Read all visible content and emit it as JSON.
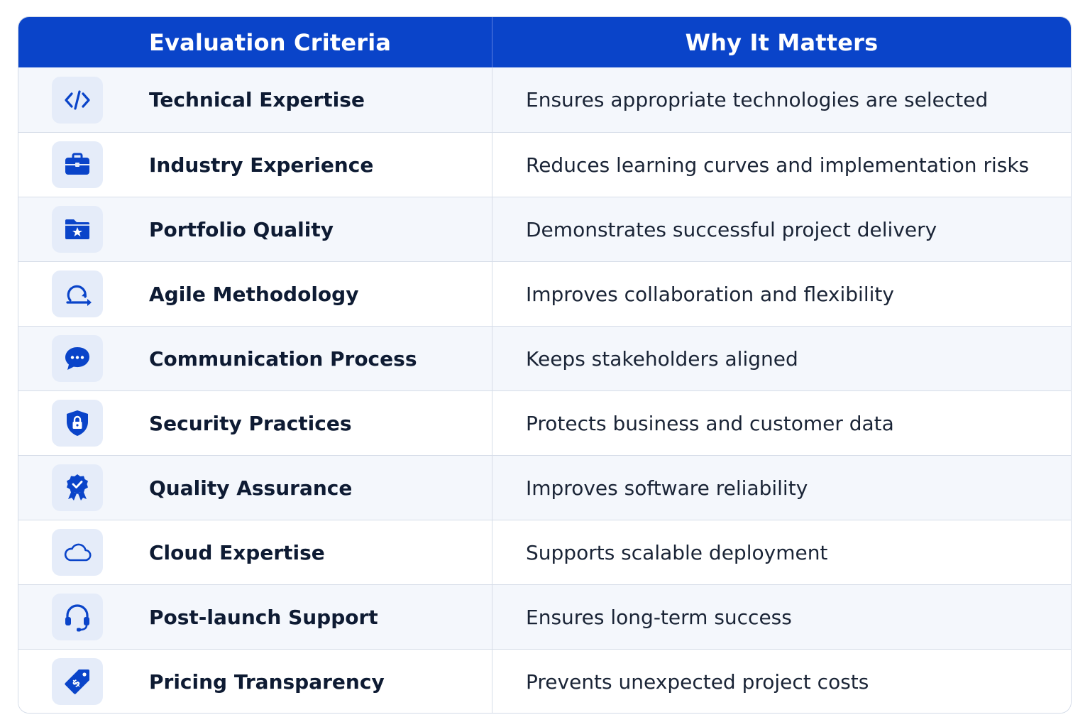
{
  "header": {
    "col1": "Evaluation Criteria",
    "col2": "Why It Matters"
  },
  "colors": {
    "header_bg": "#0a44c9",
    "icon_color": "#0a44c9",
    "icon_bg": "#e5ecf9"
  },
  "rows": [
    {
      "criteria": "Technical Expertise",
      "why": "Ensures appropriate technologies are selected",
      "icon": "code-icon"
    },
    {
      "criteria": "Industry Experience",
      "why": "Reduces learning curves and implementation risks",
      "icon": "briefcase-icon"
    },
    {
      "criteria": "Portfolio Quality",
      "why": "Demonstrates successful project delivery",
      "icon": "folder-star-icon"
    },
    {
      "criteria": "Agile Methodology",
      "why": "Improves collaboration and flexibility",
      "icon": "agile-loop-icon"
    },
    {
      "criteria": "Communication Process",
      "why": "Keeps stakeholders aligned",
      "icon": "chat-bubble-icon"
    },
    {
      "criteria": "Security Practices",
      "why": "Protects business and customer data",
      "icon": "shield-lock-icon"
    },
    {
      "criteria": "Quality Assurance",
      "why": "Improves software reliability",
      "icon": "award-badge-icon"
    },
    {
      "criteria": "Cloud Expertise",
      "why": "Supports scalable deployment",
      "icon": "cloud-icon"
    },
    {
      "criteria": "Post-launch Support",
      "why": "Ensures long-term success",
      "icon": "headset-icon"
    },
    {
      "criteria": "Pricing Transparency",
      "why": "Prevents unexpected project costs",
      "icon": "price-tag-icon"
    }
  ]
}
